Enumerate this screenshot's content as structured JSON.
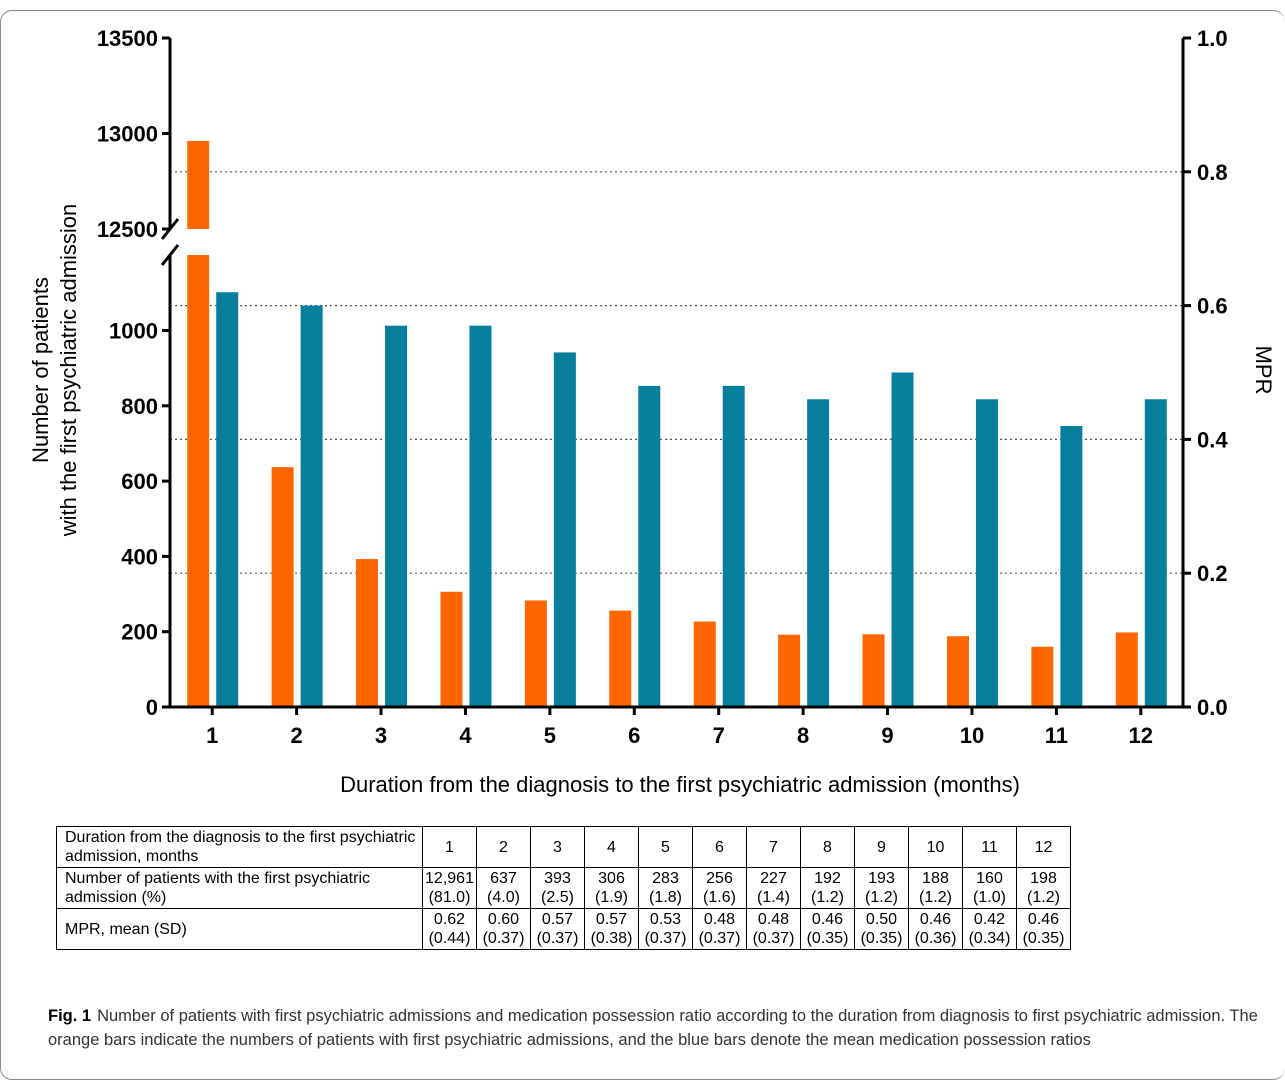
{
  "chart_data": {
    "type": "bar",
    "categories": [
      "1",
      "2",
      "3",
      "4",
      "5",
      "6",
      "7",
      "8",
      "9",
      "10",
      "11",
      "12"
    ],
    "series": [
      {
        "values": [
          12961,
          637,
          393,
          306,
          283,
          256,
          227,
          192,
          193,
          188,
          160,
          198
        ],
        "axis": "left",
        "color": "#ff6600"
      },
      {
        "values": [
          0.62,
          0.6,
          0.57,
          0.57,
          0.53,
          0.48,
          0.48,
          0.46,
          0.5,
          0.46,
          0.42,
          0.46
        ],
        "axis": "right",
        "color": "#077f9c"
      }
    ],
    "xlabel": "Duration from the diagnosis to the first psychiatric admission (months)",
    "ylabel_line1": "Number of patients",
    "ylabel_line2": "with the first psychiatric admission",
    "y2label": "MPR",
    "left_axis": {
      "lower_segment": [
        0,
        1200
      ],
      "lower_ticks": [
        "0",
        "200",
        "400",
        "600",
        "800",
        "1000"
      ],
      "upper_segment": [
        12500,
        13500
      ],
      "upper_ticks": [
        "12500",
        "13000",
        "13500"
      ],
      "broken": true
    },
    "right_axis": {
      "range": [
        0,
        1.0
      ],
      "ticks": [
        "0.0",
        "0.2",
        "0.4",
        "0.6",
        "0.8",
        "1.0"
      ]
    },
    "grid": "dotted horizontal lines at right-axis ticks"
  },
  "table": {
    "rows": [
      {
        "label": "Duration from the diagnosis to the first psychiatric admission, months",
        "cells": [
          [
            "1"
          ],
          [
            "2"
          ],
          [
            "3"
          ],
          [
            "4"
          ],
          [
            "5"
          ],
          [
            "6"
          ],
          [
            "7"
          ],
          [
            "8"
          ],
          [
            "9"
          ],
          [
            "10"
          ],
          [
            "11"
          ],
          [
            "12"
          ]
        ]
      },
      {
        "label": "Number of patients with the first psychiatric admission (%)",
        "cells": [
          [
            "12,961",
            "(81.0)"
          ],
          [
            "637",
            "(4.0)"
          ],
          [
            "393",
            "(2.5)"
          ],
          [
            "306",
            "(1.9)"
          ],
          [
            "283",
            "(1.8)"
          ],
          [
            "256",
            "(1.6)"
          ],
          [
            "227",
            "(1.4)"
          ],
          [
            "192",
            "(1.2)"
          ],
          [
            "193",
            "(1.2)"
          ],
          [
            "188",
            "(1.2)"
          ],
          [
            "160",
            "(1.0)"
          ],
          [
            "198",
            "(1.2)"
          ]
        ]
      },
      {
        "label": "MPR, mean (SD)",
        "cells": [
          [
            "0.62",
            "(0.44)"
          ],
          [
            "0.60",
            "(0.37)"
          ],
          [
            "0.57",
            "(0.37)"
          ],
          [
            "0.57",
            "(0.38)"
          ],
          [
            "0.53",
            "(0.37)"
          ],
          [
            "0.48",
            "(0.37)"
          ],
          [
            "0.48",
            "(0.37)"
          ],
          [
            "0.46",
            "(0.35)"
          ],
          [
            "0.50",
            "(0.35)"
          ],
          [
            "0.46",
            "(0.36)"
          ],
          [
            "0.42",
            "(0.34)"
          ],
          [
            "0.46",
            "(0.35)"
          ]
        ]
      }
    ]
  },
  "caption": {
    "label": "Fig. 1",
    "text": "Number of patients with first psychiatric admissions and medication possession ratio according to the duration from diagnosis to first psychiatric admission. The orange bars indicate the numbers of patients with first psychiatric admissions, and the blue bars denote the mean medication possession ratios"
  }
}
